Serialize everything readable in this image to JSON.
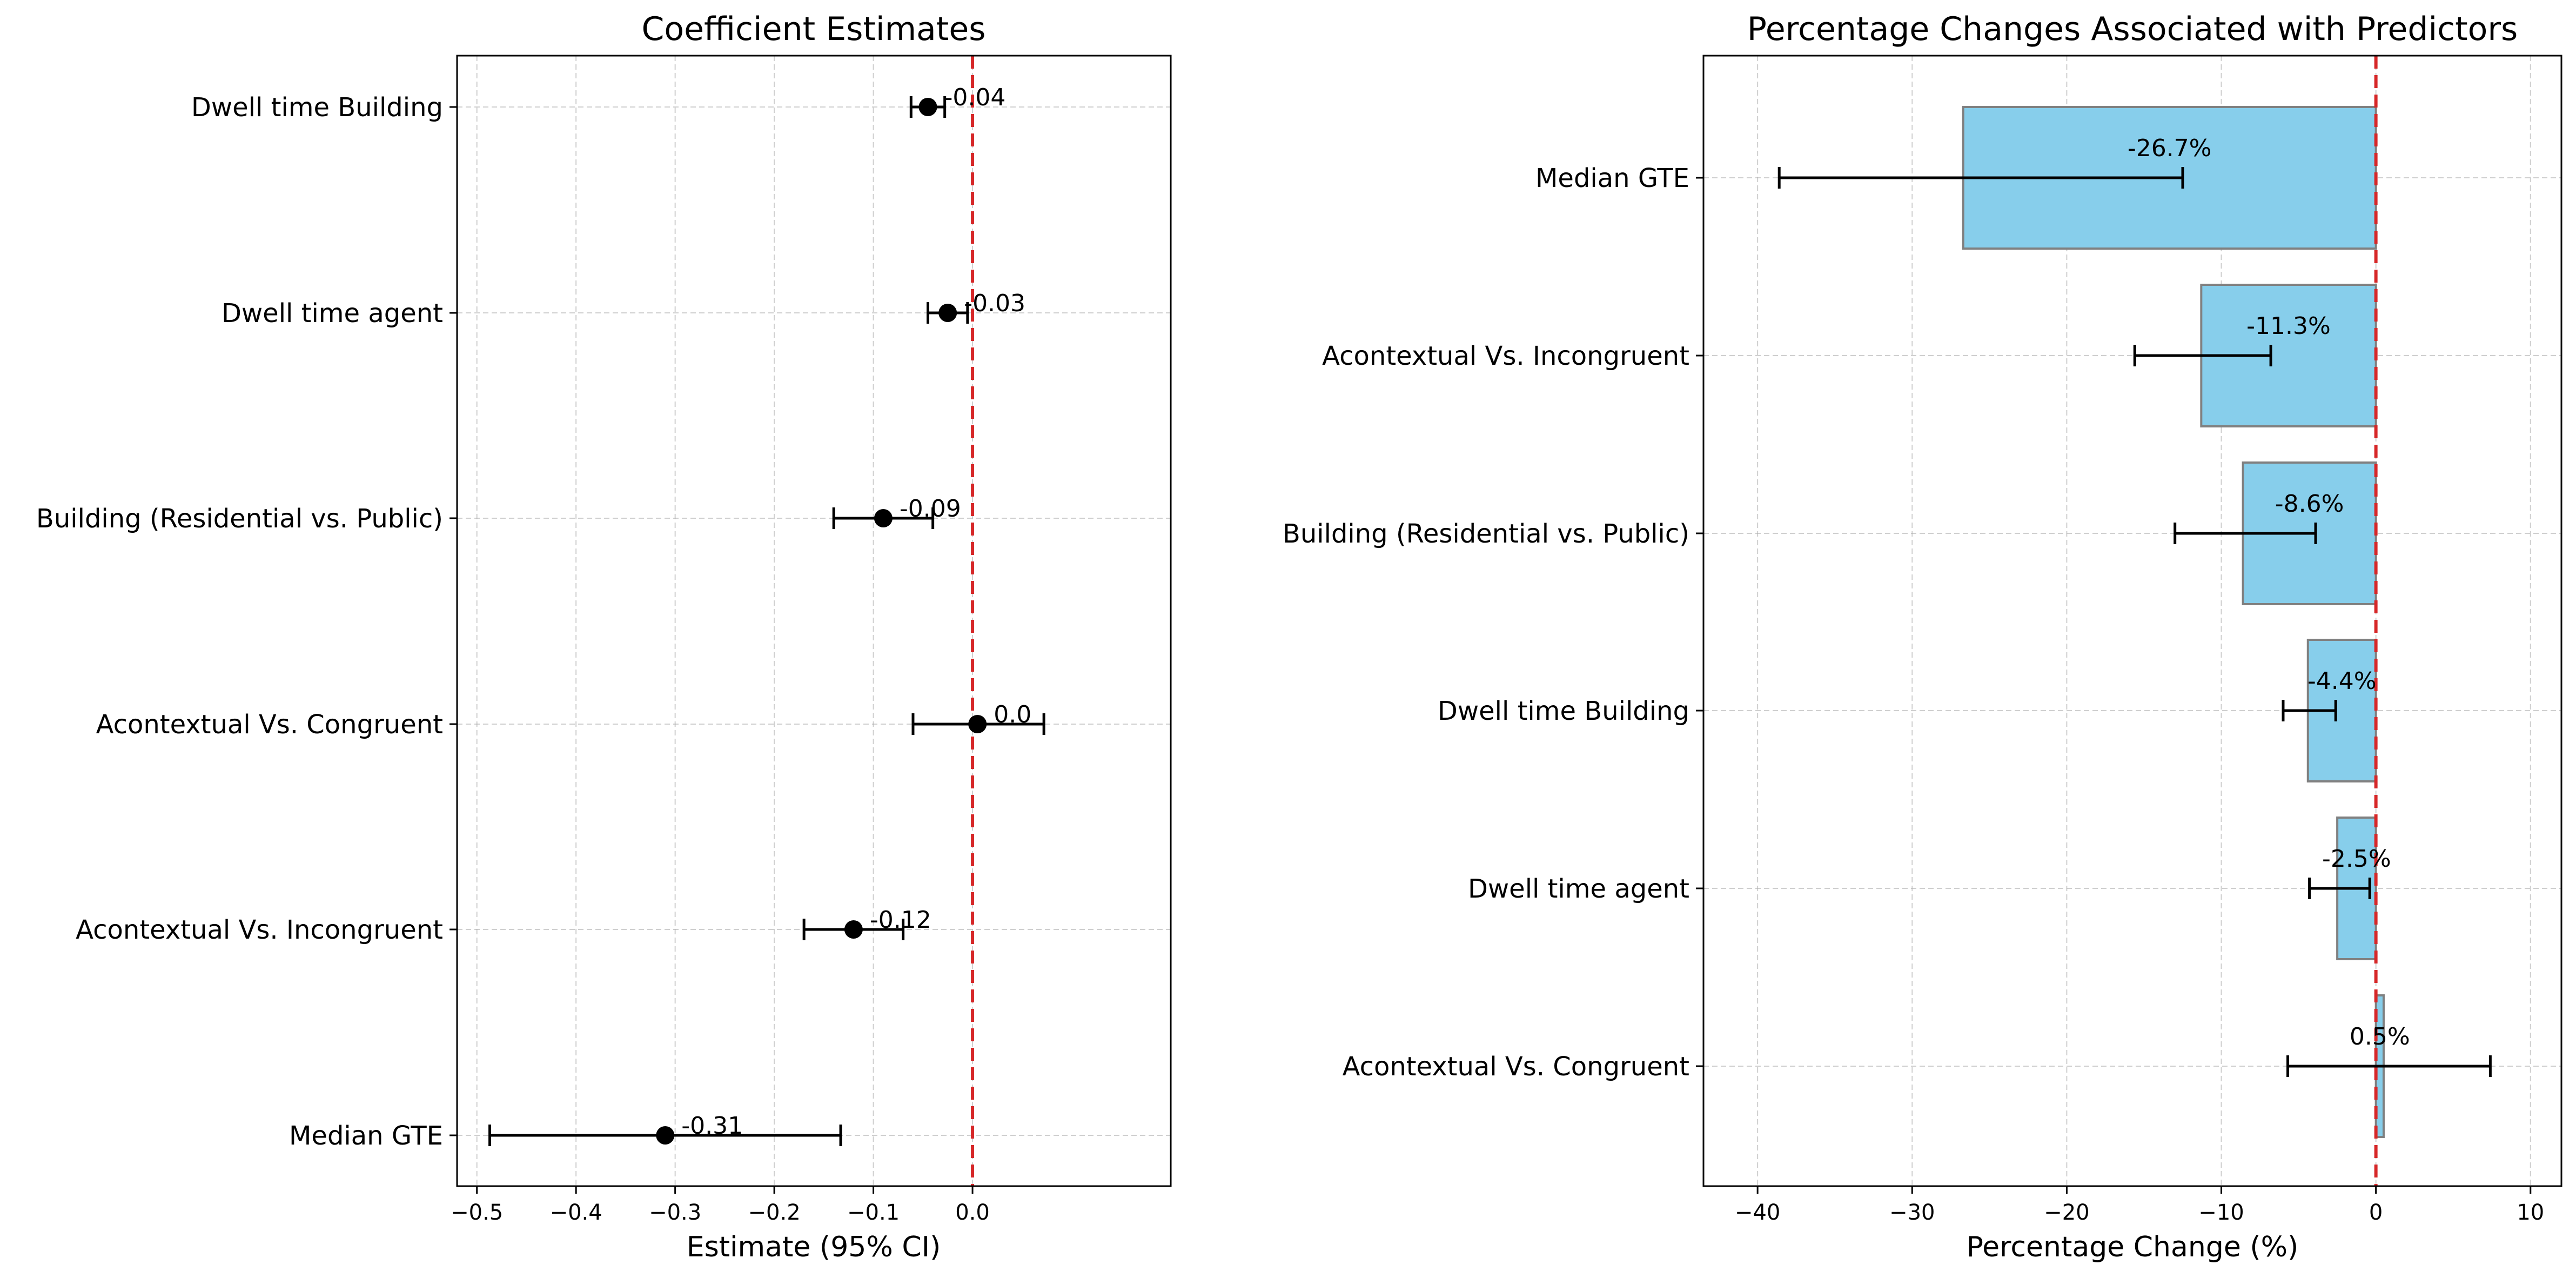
{
  "chart_data": [
    {
      "type": "scatter",
      "title": "Coefficient Estimates",
      "xlabel": "Estimate (95% CI)",
      "ylabel": "",
      "xlim": [
        -0.52,
        0.2
      ],
      "xticks": [
        -0.5,
        -0.4,
        -0.3,
        -0.2,
        -0.1,
        0.0
      ],
      "xtick_labels": [
        "−0.5",
        "−0.4",
        "−0.3",
        "−0.2",
        "−0.1",
        "0.0"
      ],
      "reference_line": 0,
      "grid": true,
      "categories": [
        "Dwell time Building",
        "Dwell time agent",
        "Building (Residential vs. Public)",
        "Acontextual Vs. Congruent",
        "Acontextual Vs. Incongruent",
        "Median GTE"
      ],
      "estimates": [
        -0.045,
        -0.025,
        -0.09,
        0.005,
        -0.12,
        -0.31
      ],
      "ci_low": [
        -0.062,
        -0.045,
        -0.14,
        -0.06,
        -0.17,
        -0.487
      ],
      "ci_high": [
        -0.028,
        -0.005,
        -0.04,
        0.072,
        -0.07,
        -0.133
      ],
      "labels": [
        "-0.04",
        "-0.03",
        "-0.09",
        "0.0",
        "-0.12",
        "-0.31"
      ]
    },
    {
      "type": "bar",
      "orientation": "horizontal",
      "title": "Percentage Changes Associated with Predictors",
      "xlabel": "Percentage Change (%)",
      "ylabel": "",
      "xlim": [
        -43.5,
        12
      ],
      "xticks": [
        -40,
        -30,
        -20,
        -10,
        0,
        10
      ],
      "xtick_labels": [
        "−40",
        "−30",
        "−20",
        "−10",
        "0",
        "10"
      ],
      "reference_line": 0,
      "grid": true,
      "color": "#87ceeb",
      "edge_color": "#808080",
      "categories": [
        "Median GTE",
        "Acontextual Vs. Incongruent",
        "Building (Residential vs. Public)",
        "Dwell time Building",
        "Dwell time agent",
        "Acontextual Vs. Congruent"
      ],
      "values": [
        -26.7,
        -11.3,
        -8.6,
        -4.4,
        -2.5,
        0.5
      ],
      "ci_low": [
        -38.6,
        -15.6,
        -13.0,
        -6.0,
        -4.3,
        -5.7
      ],
      "ci_high": [
        -12.5,
        -6.8,
        -3.9,
        -2.6,
        -0.4,
        7.4
      ],
      "labels": [
        "-26.7%",
        "-11.3%",
        "-8.6%",
        "-4.4%",
        "-2.5%",
        "0.5%"
      ]
    }
  ]
}
